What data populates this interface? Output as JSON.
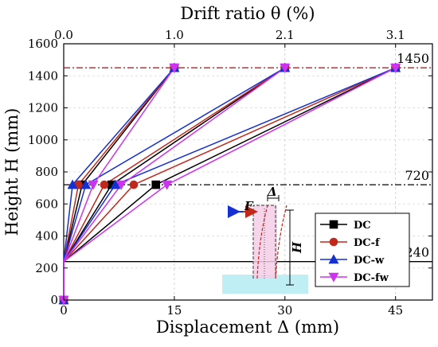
{
  "chart_data": {
    "type": "line",
    "xlabel": "Displacement Δ (mm)",
    "ylabel": "Height H (mm)",
    "x2label": "Drift ratio θ (%)",
    "xlim": [
      0,
      50
    ],
    "ylim": [
      0,
      1600
    ],
    "x_ticks": [
      0,
      15,
      30,
      45
    ],
    "y_ticks": [
      0,
      200,
      400,
      600,
      800,
      1000,
      1200,
      1400,
      1600
    ],
    "x2_ticks": [
      {
        "x": 0,
        "label": "0.0"
      },
      {
        "x": 15,
        "label": "1.0"
      },
      {
        "x": 30,
        "label": "2.1"
      },
      {
        "x": 45,
        "label": "3.1"
      }
    ],
    "reference_lines": [
      {
        "y": 1450,
        "label": "1450",
        "style": "dash-dot",
        "color": "#b22222"
      },
      {
        "y": 720,
        "label": "720",
        "style": "dash-dot",
        "color": "#000000"
      },
      {
        "y": 240,
        "label": "240",
        "style": "solid",
        "color": "#000000"
      }
    ],
    "series": [
      {
        "name": "DC",
        "color": "#000000",
        "marker": "square",
        "curves": [
          [
            [
              0,
              0
            ],
            [
              0,
              240
            ],
            [
              2.5,
              720
            ],
            [
              15,
              1450
            ]
          ],
          [
            [
              0,
              0
            ],
            [
              0,
              240
            ],
            [
              6.5,
              720
            ],
            [
              30,
              1450
            ]
          ],
          [
            [
              0,
              0
            ],
            [
              0,
              240
            ],
            [
              12.5,
              720
            ],
            [
              45,
              1450
            ]
          ]
        ],
        "points": [
          [
            0,
            0
          ],
          [
            2.5,
            720
          ],
          [
            6.5,
            720
          ],
          [
            12.5,
            720
          ],
          [
            15,
            1450
          ],
          [
            30,
            1450
          ],
          [
            45,
            1450
          ]
        ]
      },
      {
        "name": "DC-f",
        "color": "#c0281b",
        "marker": "circle",
        "curves": [
          [
            [
              0,
              0
            ],
            [
              0,
              240
            ],
            [
              2.0,
              720
            ],
            [
              15,
              1450
            ]
          ],
          [
            [
              0,
              0
            ],
            [
              0,
              240
            ],
            [
              5.5,
              720
            ],
            [
              30,
              1450
            ]
          ],
          [
            [
              0,
              0
            ],
            [
              0,
              240
            ],
            [
              9.5,
              720
            ],
            [
              45,
              1450
            ]
          ]
        ],
        "points": [
          [
            0,
            0
          ],
          [
            2.0,
            720
          ],
          [
            5.5,
            720
          ],
          [
            9.5,
            720
          ],
          [
            15,
            1450
          ],
          [
            30,
            1450
          ],
          [
            45,
            1450
          ]
        ]
      },
      {
        "name": "DC-w",
        "color": "#1530d0",
        "marker": "triangle-up",
        "curves": [
          [
            [
              0,
              0
            ],
            [
              0,
              240
            ],
            [
              1.2,
              720
            ],
            [
              15,
              1450
            ]
          ],
          [
            [
              0,
              0
            ],
            [
              0,
              240
            ],
            [
              3.0,
              720
            ],
            [
              30,
              1450
            ]
          ],
          [
            [
              0,
              0
            ],
            [
              0,
              240
            ],
            [
              7.0,
              720
            ],
            [
              45,
              1450
            ]
          ]
        ],
        "points": [
          [
            0,
            0
          ],
          [
            1.2,
            720
          ],
          [
            3.0,
            720
          ],
          [
            7.0,
            720
          ],
          [
            15,
            1450
          ],
          [
            30,
            1450
          ],
          [
            45,
            1450
          ]
        ]
      },
      {
        "name": "DC-fw",
        "color": "#cc33ee",
        "marker": "triangle-down",
        "curves": [
          [
            [
              0,
              0
            ],
            [
              0,
              240
            ],
            [
              4.0,
              720
            ],
            [
              15,
              1450
            ]
          ],
          [
            [
              0,
              0
            ],
            [
              0,
              240
            ],
            [
              7.8,
              720
            ],
            [
              30,
              1450
            ]
          ],
          [
            [
              0,
              0
            ],
            [
              0,
              240
            ],
            [
              14.0,
              720
            ],
            [
              45,
              1450
            ]
          ]
        ],
        "points": [
          [
            0,
            0
          ],
          [
            4.0,
            720
          ],
          [
            7.8,
            720
          ],
          [
            14.0,
            720
          ],
          [
            15,
            1450
          ],
          [
            30,
            1450
          ],
          [
            45,
            1450
          ]
        ]
      }
    ],
    "legend_position": "bottom-right",
    "inset_labels": {
      "force": "F",
      "displacement": "Δ",
      "height": "H"
    }
  }
}
